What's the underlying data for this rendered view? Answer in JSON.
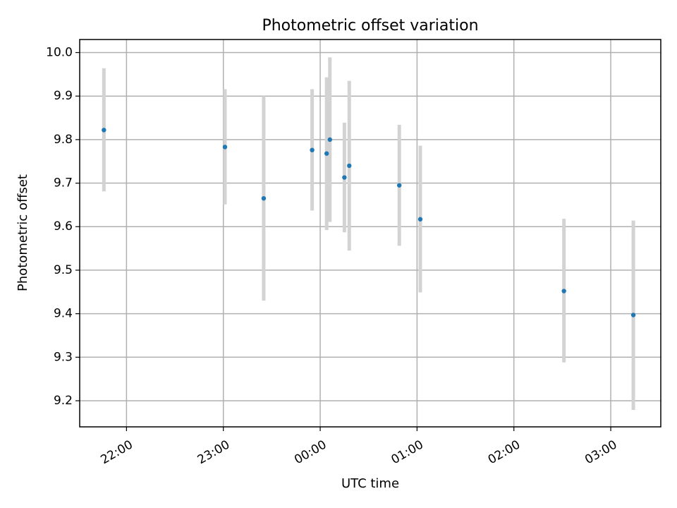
{
  "chart_data": {
    "type": "scatter",
    "title": "Photometric offset variation",
    "xlabel": "UTC time",
    "ylabel": "Photometric offset",
    "grid": true,
    "x_ticks": [
      "22:00",
      "23:00",
      "00:00",
      "01:00",
      "02:00",
      "03:00"
    ],
    "y_ticks": [
      "9.2",
      "9.3",
      "9.4",
      "9.5",
      "9.6",
      "9.7",
      "9.8",
      "9.9",
      "10.0"
    ],
    "xlim": [
      "21:31",
      "03:31"
    ],
    "ylim": [
      9.14,
      10.03
    ],
    "marker_color": "#1f77b4",
    "errorbar_color": "#d3d3d3",
    "series": [
      {
        "points": [
          {
            "x": "21:46",
            "y": 9.822,
            "ylow": 9.681,
            "yhigh": 9.964
          },
          {
            "x": "23:01",
            "y": 9.783,
            "ylow": 9.651,
            "yhigh": 9.916
          },
          {
            "x": "23:25",
            "y": 9.665,
            "ylow": 9.43,
            "yhigh": 9.9
          },
          {
            "x": "23:55",
            "y": 9.776,
            "ylow": 9.637,
            "yhigh": 9.916
          },
          {
            "x": "00:04",
            "y": 9.768,
            "ylow": 9.592,
            "yhigh": 9.943
          },
          {
            "x": "00:06",
            "y": 9.8,
            "ylow": 9.611,
            "yhigh": 9.989
          },
          {
            "x": "00:15",
            "y": 9.713,
            "ylow": 9.587,
            "yhigh": 9.839
          },
          {
            "x": "00:18",
            "y": 9.74,
            "ylow": 9.545,
            "yhigh": 9.935
          },
          {
            "x": "00:49",
            "y": 9.695,
            "ylow": 9.556,
            "yhigh": 9.834
          },
          {
            "x": "01:02",
            "y": 9.617,
            "ylow": 9.449,
            "yhigh": 9.786
          },
          {
            "x": "02:31",
            "y": 9.452,
            "ylow": 9.288,
            "yhigh": 9.618
          },
          {
            "x": "03:14",
            "y": 9.397,
            "ylow": 9.179,
            "yhigh": 9.614
          }
        ]
      }
    ]
  }
}
